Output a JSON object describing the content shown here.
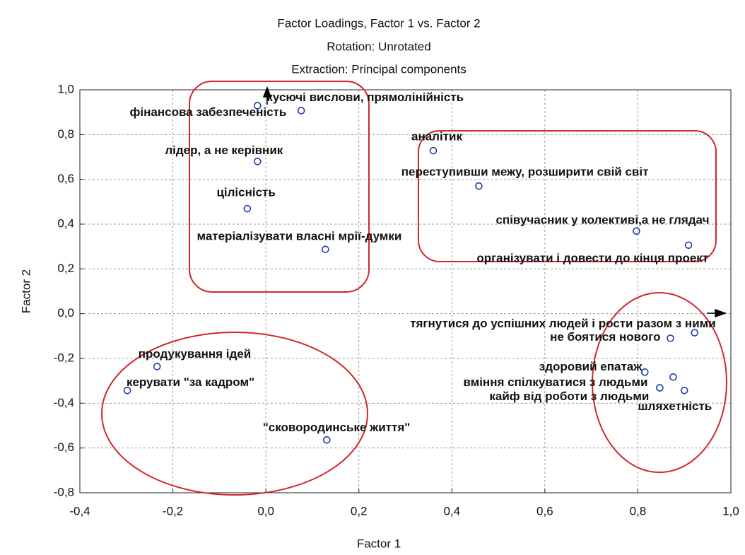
{
  "chart_data": {
    "type": "scatter",
    "title": "Factor Loadings, Factor 1 vs. Factor 2",
    "subtitle": [
      "Rotation: Unrotated",
      "Extraction: Principal components"
    ],
    "xlabel": "Factor 1",
    "ylabel": "Factor 2",
    "color": "#1f3fa0",
    "grid": true,
    "xlim": [
      -0.4,
      1.0
    ],
    "xticks": [
      {
        "value": -0.4,
        "label": "-0,4"
      },
      {
        "value": -0.2,
        "label": "-0,2"
      },
      {
        "value": 0.0,
        "label": "0,0"
      },
      {
        "value": 0.2,
        "label": "0,2"
      },
      {
        "value": 0.4,
        "label": "0,4"
      },
      {
        "value": 0.6,
        "label": "0,6"
      },
      {
        "value": 0.8,
        "label": "0,8"
      },
      {
        "value": 1.0,
        "label": "1,0"
      }
    ],
    "ylim": [
      -0.8,
      1.0
    ],
    "yticks": [
      {
        "value": -0.8,
        "label": "-0,8"
      },
      {
        "value": -0.6,
        "label": "-0,6"
      },
      {
        "value": -0.4,
        "label": "-0,4"
      },
      {
        "value": -0.2,
        "label": "-0,2"
      },
      {
        "value": 0.0,
        "label": "0,0"
      },
      {
        "value": 0.2,
        "label": "0,2"
      },
      {
        "value": 0.4,
        "label": "0,4"
      },
      {
        "value": 0.6,
        "label": "0,6"
      },
      {
        "value": 0.8,
        "label": "0,8"
      },
      {
        "value": 1.0,
        "label": "1,0"
      }
    ],
    "labels": [
      "фінансова забезпеченість",
      "кусючі вислови, прямолінійність",
      "лідер, а не керівник",
      "цілісність",
      "матеріалізувати власні мрії-думки",
      "аналітик",
      "переступивши межу, розширити свій світ",
      "співучасник у колективі,а не глядач",
      "організувати і довести до кінця проект",
      "тягнутися до успішних людей і рости разом з ними",
      "не боятися нового",
      "здоровий епатаж",
      "вміння спілкуватися з людьми",
      "кайф від роботи з людьми",
      "шляхетність",
      "продукування ідей",
      "керувати \"за кадром\"",
      "\"сковородинське життя\""
    ],
    "x": [
      -0.018,
      0.076,
      -0.018,
      -0.04,
      0.128,
      0.36,
      0.458,
      0.797,
      0.909,
      0.922,
      0.87,
      0.815,
      0.876,
      0.847,
      0.9,
      -0.234,
      -0.298,
      0.131
    ],
    "values": [
      0.929,
      0.907,
      0.68,
      0.469,
      0.287,
      0.728,
      0.57,
      0.369,
      0.306,
      -0.085,
      -0.11,
      -0.261,
      -0.283,
      -0.331,
      -0.343,
      -0.236,
      -0.343,
      -0.564
    ]
  }
}
